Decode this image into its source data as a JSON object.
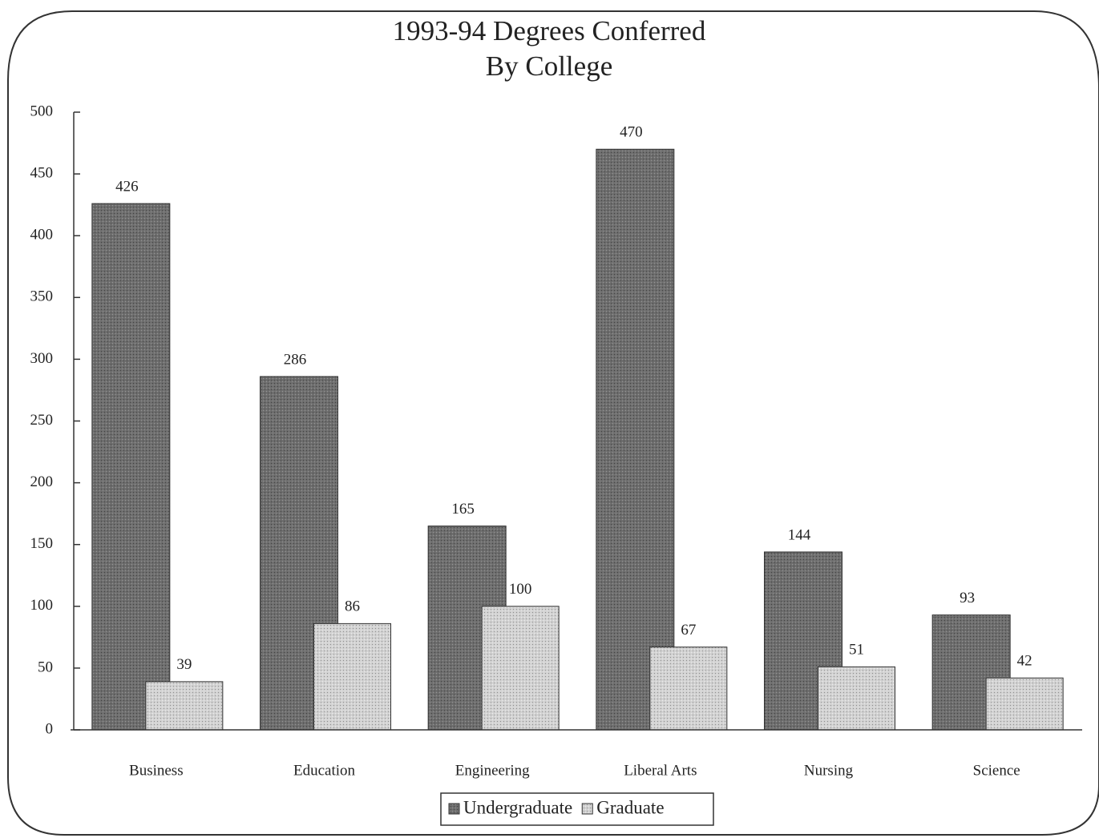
{
  "chart_data": {
    "type": "bar",
    "title": "1993-94  Degrees Conferred",
    "subtitle": "By College",
    "categories": [
      "Business",
      "Education",
      "Engineering",
      "Liberal Arts",
      "Nursing",
      "Science"
    ],
    "series": [
      {
        "name": "Undergraduate",
        "color": "#6e6e6e",
        "values": [
          426,
          286,
          165,
          470,
          144,
          93
        ]
      },
      {
        "name": "Graduate",
        "color": "#d2d2d2",
        "values": [
          39,
          86,
          100,
          67,
          51,
          42
        ]
      }
    ],
    "ylim": [
      0,
      500
    ],
    "yticks": [
      0,
      50,
      100,
      150,
      200,
      250,
      300,
      350,
      400,
      450,
      500
    ],
    "legend": "bottom"
  }
}
